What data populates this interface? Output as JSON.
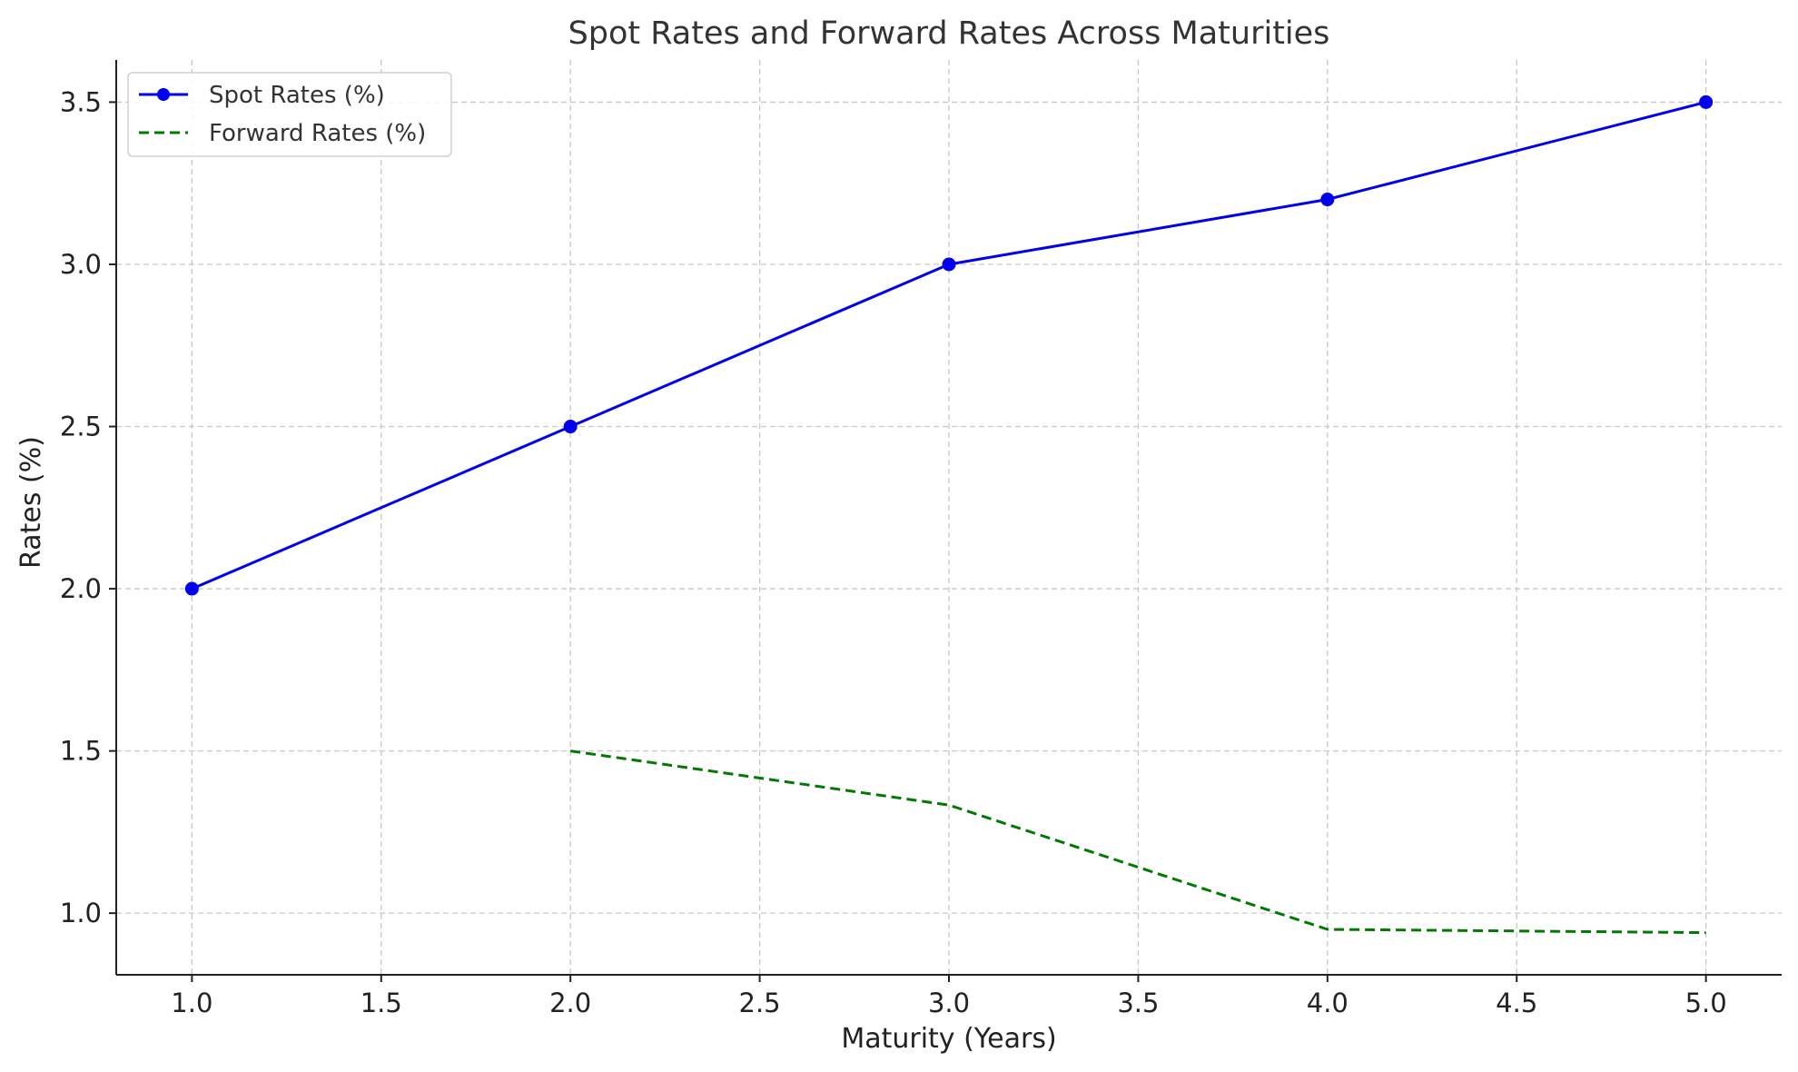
{
  "chart_data": {
    "type": "line",
    "title": "Spot Rates and Forward Rates Across Maturities",
    "xlabel": "Maturity (Years)",
    "ylabel": "Rates (%)",
    "xlim": [
      0.8,
      5.2
    ],
    "ylim": [
      0.81,
      3.63
    ],
    "xticks": [
      "1.0",
      "1.5",
      "2.0",
      "2.5",
      "3.0",
      "3.5",
      "4.0",
      "4.5",
      "5.0"
    ],
    "yticks": [
      "1.0",
      "1.5",
      "2.0",
      "2.5",
      "3.0",
      "3.5"
    ],
    "grid": true,
    "legend_position": "top-left",
    "series": [
      {
        "name": "Spot Rates (%)",
        "x": [
          1,
          2,
          3,
          4,
          5
        ],
        "values": [
          2.0,
          2.5,
          3.0,
          3.2,
          3.5
        ],
        "color": "#0000ee",
        "style": "solid",
        "marker": "circle"
      },
      {
        "name": "Forward Rates (%)",
        "x": [
          2,
          3,
          4,
          5
        ],
        "values": [
          1.5,
          1.333,
          0.95,
          0.94
        ],
        "color": "#007a00",
        "style": "dashed",
        "marker": "none"
      }
    ]
  }
}
